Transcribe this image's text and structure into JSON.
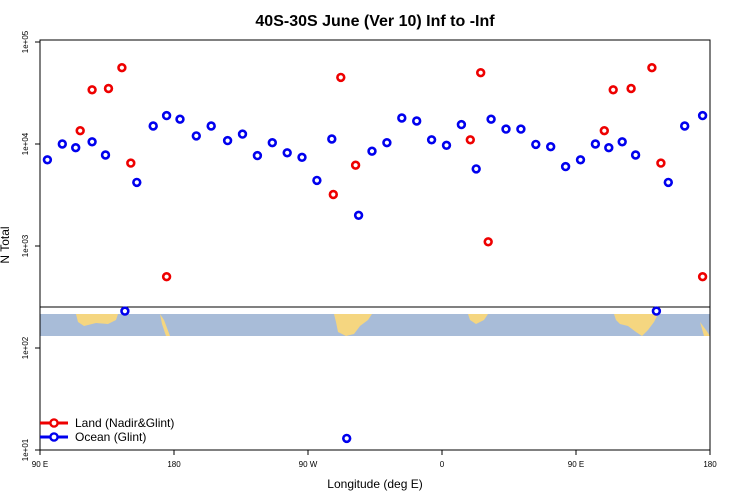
{
  "chart_data": {
    "type": "scatter",
    "title": "40S-30S June (Ver 10)   Inf to -Inf",
    "xlabel": "Longitude (deg E)",
    "ylabel": "N Total",
    "x_scale": "longitude",
    "y_scale": "log",
    "x_ticks": [
      {
        "value": 90,
        "label": "90 E"
      },
      {
        "value": 180,
        "label": "180"
      },
      {
        "value": 270,
        "label": "90 W"
      },
      {
        "value": 360,
        "label": "0"
      },
      {
        "value": 450,
        "label": "90 E"
      },
      {
        "value": 540,
        "label": "180"
      }
    ],
    "y_ticks": [
      {
        "value": 10,
        "label": "1e+01"
      },
      {
        "value": 100,
        "label": "1e+02"
      },
      {
        "value": 1000,
        "label": "1e+03"
      },
      {
        "value": 10000,
        "label": "1e+04"
      },
      {
        "value": 100000,
        "label": "1e+05"
      }
    ],
    "xlim": [
      90,
      540
    ],
    "ylim": [
      10,
      100000
    ],
    "series": [
      {
        "name": "Land (Nadir&Glint)",
        "color": "#ee0000",
        "points": [
          [
            117,
            13500
          ],
          [
            125,
            34000
          ],
          [
            136,
            35000
          ],
          [
            145,
            56000
          ],
          [
            151,
            6500
          ],
          [
            175,
            500
          ],
          [
            287,
            3200
          ],
          [
            292,
            45000
          ],
          [
            302,
            6200
          ],
          [
            379,
            11000
          ],
          [
            386,
            50000
          ],
          [
            391,
            1100
          ],
          [
            469,
            13500
          ],
          [
            475,
            34000
          ],
          [
            487,
            35000
          ],
          [
            501,
            56000
          ],
          [
            507,
            6500
          ],
          [
            535,
            500
          ]
        ]
      },
      {
        "name": "Ocean (Glint)",
        "color": "#0000ee",
        "points": [
          [
            95,
            7000
          ],
          [
            105,
            10000
          ],
          [
            114,
            9200
          ],
          [
            125,
            10500
          ],
          [
            134,
            7800
          ],
          [
            147,
            230
          ],
          [
            155,
            4200
          ],
          [
            166,
            15000
          ],
          [
            175,
            19000
          ],
          [
            184,
            17500
          ],
          [
            195,
            12000
          ],
          [
            205,
            15000
          ],
          [
            216,
            10800
          ],
          [
            226,
            12500
          ],
          [
            236,
            7700
          ],
          [
            246,
            10300
          ],
          [
            256,
            8200
          ],
          [
            266,
            7400
          ],
          [
            276,
            4400
          ],
          [
            286,
            11200
          ],
          [
            296,
            13
          ],
          [
            304,
            2000
          ],
          [
            313,
            8500
          ],
          [
            323,
            10300
          ],
          [
            333,
            18000
          ],
          [
            343,
            16800
          ],
          [
            353,
            11000
          ],
          [
            363,
            9700
          ],
          [
            373,
            15500
          ],
          [
            383,
            5700
          ],
          [
            393,
            17500
          ],
          [
            403,
            14000
          ],
          [
            413,
            14000
          ],
          [
            423,
            9900
          ],
          [
            433,
            9400
          ],
          [
            443,
            6000
          ],
          [
            453,
            7000
          ],
          [
            463,
            10000
          ],
          [
            472,
            9200
          ],
          [
            481,
            10500
          ],
          [
            490,
            7800
          ],
          [
            504,
            230
          ],
          [
            512,
            4200
          ],
          [
            523,
            15000
          ],
          [
            535,
            19000
          ]
        ]
      }
    ],
    "legend_position": "bottom-left"
  }
}
